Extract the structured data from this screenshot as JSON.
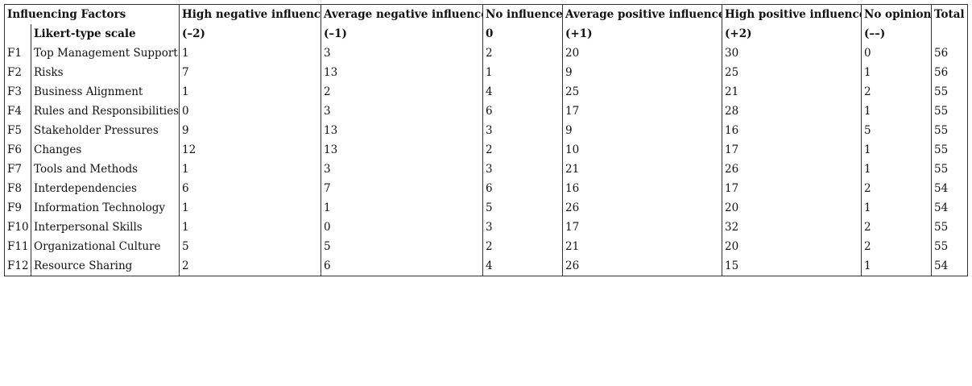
{
  "table": {
    "header": [
      "Influencing Factors",
      "High negative influence",
      "Average negative influence",
      "No influence",
      "Average positive influence",
      "High positive influence",
      "No opinion",
      "Total"
    ],
    "scale_row": {
      "label": "Likert-type scale",
      "values": [
        "(–2)",
        "(–1)",
        "0",
        "(+1)",
        "(+2)",
        "(––)"
      ]
    },
    "rows": [
      [
        "F1",
        "Top Management Support",
        1,
        3,
        2,
        20,
        30,
        0,
        56
      ],
      [
        "F2",
        "Risks",
        7,
        13,
        1,
        9,
        25,
        1,
        56
      ],
      [
        "F3",
        "Business Alignment",
        1,
        2,
        4,
        25,
        21,
        2,
        55
      ],
      [
        "F4",
        "Rules and Responsibilities",
        0,
        3,
        6,
        17,
        28,
        1,
        55
      ],
      [
        "F5",
        "Stakeholder Pressures",
        9,
        13,
        3,
        9,
        16,
        5,
        55
      ],
      [
        "F6",
        "Changes",
        12,
        13,
        2,
        10,
        17,
        1,
        55
      ],
      [
        "F7",
        "Tools and Methods",
        1,
        3,
        3,
        21,
        26,
        1,
        55
      ],
      [
        "F8",
        "Interdependencies",
        6,
        7,
        6,
        16,
        17,
        2,
        54
      ],
      [
        "F9",
        "Information Technology",
        1,
        1,
        5,
        26,
        20,
        1,
        54
      ],
      [
        "F10",
        "Interpersonal Skills",
        1,
        0,
        3,
        17,
        32,
        2,
        55
      ],
      [
        "F11",
        "Organizational Culture",
        5,
        5,
        2,
        21,
        20,
        2,
        55
      ],
      [
        "F12",
        "Resource Sharing",
        2,
        6,
        4,
        26,
        15,
        1,
        54
      ]
    ]
  }
}
